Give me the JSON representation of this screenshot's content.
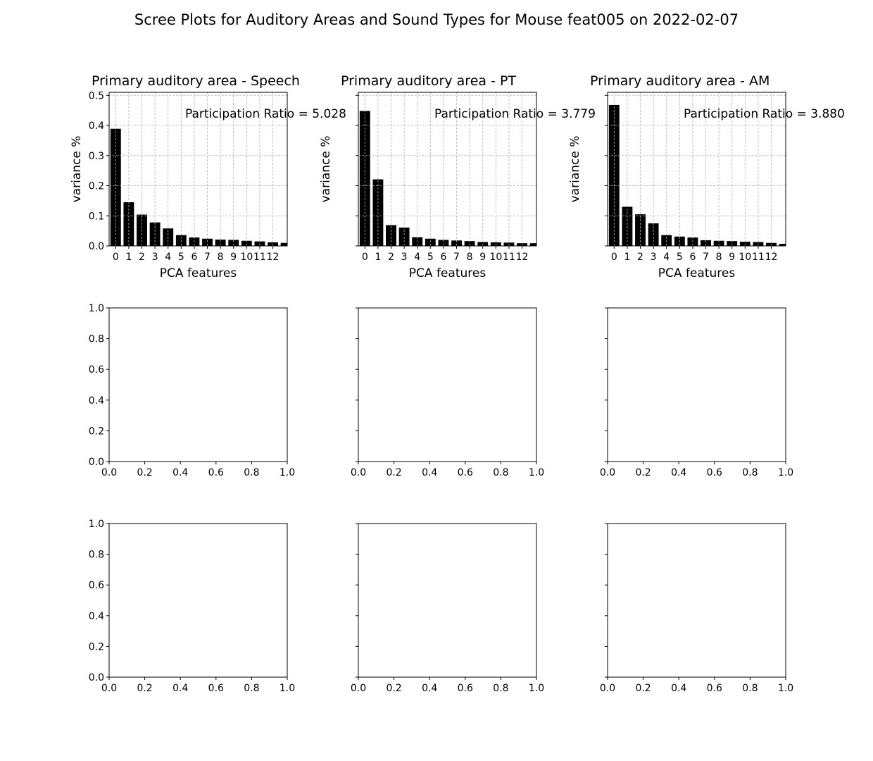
{
  "figure": {
    "title": "Scree Plots for Auditory Areas and Sound Types for Mouse feat005 on 2022-02-07"
  },
  "chart_data": [
    {
      "type": "bar",
      "title": "Primary auditory area - Speech",
      "xlabel": "PCA features",
      "ylabel": "variance %",
      "annotation": "Participation Ratio = 5.028",
      "categories": [
        "0",
        "1",
        "2",
        "3",
        "4",
        "5",
        "6",
        "7",
        "8",
        "9",
        "10",
        "11",
        "12",
        "13"
      ],
      "xtick_labels": [
        "0",
        "1",
        "2",
        "3",
        "4",
        "5",
        "6",
        "7",
        "8",
        "9",
        "10",
        "11",
        "12"
      ],
      "values": [
        0.389,
        0.145,
        0.104,
        0.078,
        0.058,
        0.036,
        0.028,
        0.024,
        0.021,
        0.02,
        0.017,
        0.015,
        0.012,
        0.01
      ],
      "ylim": [
        0,
        0.51
      ],
      "yticks": [
        "0.0",
        "0.1",
        "0.2",
        "0.3",
        "0.4",
        "0.5"
      ],
      "show_yticklabels": true,
      "grid": true,
      "bar_color": "#000000"
    },
    {
      "type": "bar",
      "title": "Primary auditory area - PT",
      "xlabel": "PCA features",
      "ylabel": "variance %",
      "annotation": "Participation Ratio = 3.779",
      "categories": [
        "0",
        "1",
        "2",
        "3",
        "4",
        "5",
        "6",
        "7",
        "8",
        "9",
        "10",
        "11",
        "12",
        "13"
      ],
      "xtick_labels": [
        "0",
        "1",
        "2",
        "3",
        "4",
        "5",
        "6",
        "7",
        "8",
        "9",
        "10",
        "11",
        "12"
      ],
      "values": [
        0.448,
        0.221,
        0.069,
        0.061,
        0.029,
        0.024,
        0.02,
        0.018,
        0.016,
        0.013,
        0.012,
        0.011,
        0.009,
        0.009
      ],
      "ylim": [
        0,
        0.51
      ],
      "yticks": [
        "0.0",
        "0.1",
        "0.2",
        "0.3",
        "0.4",
        "0.5"
      ],
      "show_yticklabels": false,
      "grid": true,
      "bar_color": "#000000"
    },
    {
      "type": "bar",
      "title": "Primary auditory area - AM",
      "xlabel": "PCA features",
      "ylabel": "variance %",
      "annotation": "Participation Ratio = 3.880",
      "categories": [
        "0",
        "1",
        "2",
        "3",
        "4",
        "5",
        "6",
        "7",
        "8",
        "9",
        "10",
        "11",
        "12",
        "13"
      ],
      "xtick_labels": [
        "0",
        "1",
        "2",
        "3",
        "4",
        "5",
        "6",
        "7",
        "8",
        "9",
        "10",
        "11",
        "12"
      ],
      "values": [
        0.468,
        0.13,
        0.105,
        0.075,
        0.036,
        0.031,
        0.028,
        0.019,
        0.017,
        0.016,
        0.014,
        0.013,
        0.01,
        0.007
      ],
      "ylim": [
        0,
        0.51
      ],
      "yticks": [
        "0.0",
        "0.1",
        "0.2",
        "0.3",
        "0.4",
        "0.5"
      ],
      "show_yticklabels": false,
      "grid": true,
      "bar_color": "#000000"
    },
    {
      "type": "empty",
      "xlim": [
        0,
        1
      ],
      "ylim": [
        0,
        1
      ],
      "xticks": [
        "0.0",
        "0.2",
        "0.4",
        "0.6",
        "0.8",
        "1.0"
      ],
      "yticks": [
        "0.0",
        "0.2",
        "0.4",
        "0.6",
        "0.8",
        "1.0"
      ],
      "show_yticklabels": true
    },
    {
      "type": "empty",
      "xlim": [
        0,
        1
      ],
      "ylim": [
        0,
        1
      ],
      "xticks": [
        "0.0",
        "0.2",
        "0.4",
        "0.6",
        "0.8",
        "1.0"
      ],
      "yticks": [
        "0.0",
        "0.2",
        "0.4",
        "0.6",
        "0.8",
        "1.0"
      ],
      "show_yticklabels": false
    },
    {
      "type": "empty",
      "xlim": [
        0,
        1
      ],
      "ylim": [
        0,
        1
      ],
      "xticks": [
        "0.0",
        "0.2",
        "0.4",
        "0.6",
        "0.8",
        "1.0"
      ],
      "yticks": [
        "0.0",
        "0.2",
        "0.4",
        "0.6",
        "0.8",
        "1.0"
      ],
      "show_yticklabels": false
    },
    {
      "type": "empty",
      "xlim": [
        0,
        1
      ],
      "ylim": [
        0,
        1
      ],
      "xticks": [
        "0.0",
        "0.2",
        "0.4",
        "0.6",
        "0.8",
        "1.0"
      ],
      "yticks": [
        "0.0",
        "0.2",
        "0.4",
        "0.6",
        "0.8",
        "1.0"
      ],
      "show_yticklabels": true
    },
    {
      "type": "empty",
      "xlim": [
        0,
        1
      ],
      "ylim": [
        0,
        1
      ],
      "xticks": [
        "0.0",
        "0.2",
        "0.4",
        "0.6",
        "0.8",
        "1.0"
      ],
      "yticks": [
        "0.0",
        "0.2",
        "0.4",
        "0.6",
        "0.8",
        "1.0"
      ],
      "show_yticklabels": false
    },
    {
      "type": "empty",
      "xlim": [
        0,
        1
      ],
      "ylim": [
        0,
        1
      ],
      "xticks": [
        "0.0",
        "0.2",
        "0.4",
        "0.6",
        "0.8",
        "1.0"
      ],
      "yticks": [
        "0.0",
        "0.2",
        "0.4",
        "0.6",
        "0.8",
        "1.0"
      ],
      "show_yticklabels": false
    }
  ]
}
